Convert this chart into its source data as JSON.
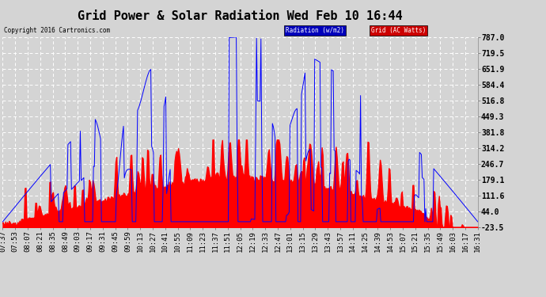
{
  "title": "Grid Power & Solar Radiation Wed Feb 10 16:44",
  "copyright": "Copyright 2016 Cartronics.com",
  "legend_radiation": "Radiation (w/m2)",
  "legend_grid": "Grid (AC Watts)",
  "yticks": [
    787.0,
    719.5,
    651.9,
    584.4,
    516.8,
    449.3,
    381.8,
    314.2,
    246.7,
    179.1,
    111.6,
    44.0,
    -23.5
  ],
  "ymin": -23.5,
  "ymax": 787.0,
  "xtick_labels": [
    "07:37",
    "07:53",
    "08:07",
    "08:21",
    "08:35",
    "08:49",
    "09:03",
    "09:17",
    "09:31",
    "09:45",
    "09:59",
    "10:13",
    "10:27",
    "10:41",
    "10:55",
    "11:09",
    "11:23",
    "11:37",
    "11:51",
    "12:05",
    "12:19",
    "12:33",
    "12:47",
    "13:01",
    "13:15",
    "13:29",
    "13:43",
    "13:57",
    "14:11",
    "14:25",
    "14:39",
    "14:53",
    "15:07",
    "15:21",
    "15:35",
    "15:49",
    "16:03",
    "16:17",
    "16:31"
  ],
  "background_color": "#d4d4d4",
  "plot_bg_color": "#d4d4d4",
  "grid_color": "#ffffff",
  "blue_color": "#0000ff",
  "red_color": "#ff0000",
  "title_fontsize": 11,
  "tick_fontsize": 6.5
}
